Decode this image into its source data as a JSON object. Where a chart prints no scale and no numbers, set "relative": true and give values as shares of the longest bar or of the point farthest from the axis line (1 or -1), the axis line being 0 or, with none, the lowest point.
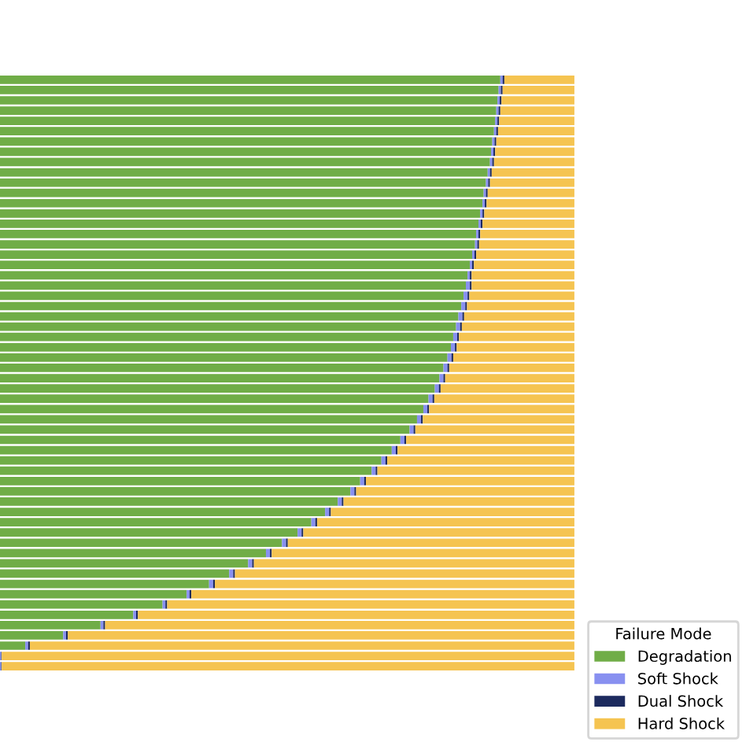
{
  "chart_data": {
    "type": "bar",
    "orientation": "horizontal",
    "stacked": true,
    "relative": true,
    "legend": "bottom right",
    "legend_title": "Failure Mode",
    "categories": [
      null,
      null,
      null,
      null,
      null,
      null,
      null,
      null,
      null,
      null,
      null,
      null,
      null,
      null,
      null,
      null,
      null,
      null,
      null,
      null,
      null,
      null,
      null,
      null,
      null,
      null,
      null,
      null,
      null,
      null,
      null,
      null,
      null,
      null,
      null,
      null,
      null,
      null,
      null,
      null,
      null,
      null,
      null,
      null,
      null,
      null,
      null,
      null,
      null,
      null,
      null,
      null,
      null,
      null,
      null,
      null,
      null,
      null
    ],
    "series": [
      {
        "name": "Degradation",
        "color": "#70ad47",
        "values": [
          0.871,
          0.868,
          0.866,
          0.864,
          0.862,
          0.86,
          0.857,
          0.855,
          0.853,
          0.849,
          0.846,
          0.842,
          0.84,
          0.836,
          0.833,
          0.829,
          0.827,
          0.822,
          0.818,
          0.814,
          0.811,
          0.807,
          0.803,
          0.798,
          0.794,
          0.789,
          0.785,
          0.779,
          0.772,
          0.765,
          0.757,
          0.746,
          0.737,
          0.726,
          0.713,
          0.697,
          0.682,
          0.664,
          0.647,
          0.627,
          0.61,
          0.588,
          0.566,
          0.542,
          0.518,
          0.491,
          0.463,
          0.432,
          0.399,
          0.364,
          0.325,
          0.283,
          0.232,
          0.175,
          0.11,
          0.044,
          0,
          0
        ]
      },
      {
        "name": "Soft Shock",
        "color": "#8890f0",
        "values": [
          0.004,
          0.004,
          0.004,
          0.004,
          0.004,
          0.004,
          0.004,
          0.004,
          0.004,
          0.004,
          0.004,
          0.004,
          0.004,
          0.004,
          0.004,
          0.004,
          0.004,
          0.004,
          0.004,
          0.004,
          0.007,
          0.007,
          0.007,
          0.007,
          0.007,
          0.007,
          0.007,
          0.007,
          0.007,
          0.007,
          0.007,
          0.007,
          0.007,
          0.007,
          0.007,
          0.007,
          0.007,
          0.007,
          0.007,
          0.007,
          0.007,
          0.007,
          0.007,
          0.007,
          0.007,
          0.007,
          0.007,
          0.007,
          0.007,
          0.007,
          0.005,
          0.005,
          0.005,
          0.005,
          0.005,
          0.005,
          0.002,
          0.002
        ]
      },
      {
        "name": "Dual Shock",
        "color": "#1c2a5e",
        "values": [
          0.003,
          0.003,
          0.003,
          0.003,
          0.003,
          0.003,
          0.003,
          0.003,
          0.003,
          0.003,
          0.003,
          0.003,
          0.003,
          0.003,
          0.003,
          0.003,
          0.003,
          0.003,
          0.003,
          0.003,
          0.003,
          0.003,
          0.003,
          0.003,
          0.003,
          0.003,
          0.003,
          0.003,
          0.003,
          0.003,
          0.003,
          0.003,
          0.003,
          0.003,
          0.003,
          0.003,
          0.003,
          0.003,
          0.003,
          0.003,
          0.003,
          0.003,
          0.003,
          0.003,
          0.003,
          0.003,
          0.003,
          0.003,
          0.003,
          0.003,
          0.003,
          0.003,
          0.003,
          0.003,
          0.003,
          0.003,
          0.001,
          0.001
        ]
      },
      {
        "name": "Hard Shock",
        "color": "#f5c451",
        "values": [
          0.122,
          0.125,
          0.127,
          0.129,
          0.131,
          0.133,
          0.136,
          0.138,
          0.14,
          0.144,
          0.147,
          0.151,
          0.153,
          0.157,
          0.16,
          0.164,
          0.166,
          0.171,
          0.175,
          0.179,
          0.179,
          0.183,
          0.187,
          0.192,
          0.196,
          0.201,
          0.205,
          0.211,
          0.218,
          0.225,
          0.233,
          0.244,
          0.253,
          0.264,
          0.277,
          0.293,
          0.308,
          0.326,
          0.343,
          0.363,
          0.38,
          0.402,
          0.424,
          0.448,
          0.472,
          0.499,
          0.527,
          0.558,
          0.591,
          0.626,
          0.667,
          0.709,
          0.76,
          0.817,
          0.882,
          0.948,
          0.997,
          0.997
        ]
      }
    ]
  }
}
